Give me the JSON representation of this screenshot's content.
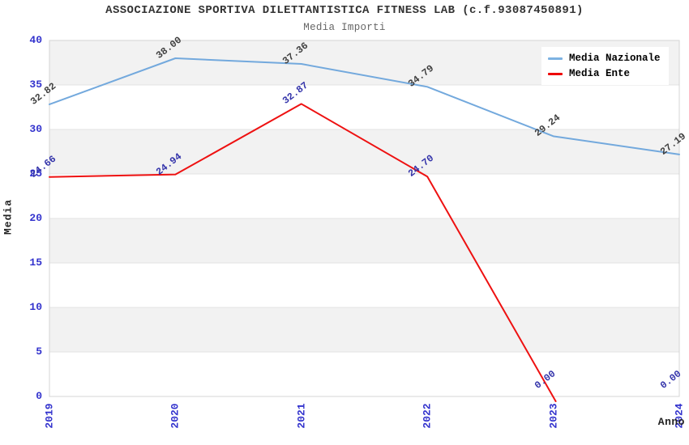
{
  "header": {
    "title": "ASSOCIAZIONE SPORTIVA DILETTANTISTICA FITNESS LAB (c.f.93087450891)",
    "subtitle": "Media Importi"
  },
  "legend": {
    "items": [
      {
        "label": "Media Nazionale",
        "color": "#7db2e2"
      },
      {
        "label": "Media Ente",
        "color": "#ee0000"
      }
    ]
  },
  "chart_data": {
    "type": "line",
    "title": "ASSOCIAZIONE SPORTIVA DILETTANTISTICA FITNESS LAB (c.f.93087450891)",
    "subtitle": "Media Importi",
    "xlabel": "Anno",
    "ylabel": "Media",
    "x": [
      2019,
      2020,
      2021,
      2022,
      2023,
      2024
    ],
    "series": [
      {
        "name": "Media Nazionale",
        "color": "#73a9dd",
        "label_color": "#3f3f3f",
        "values": [
          32.82,
          38.0,
          37.36,
          34.79,
          29.24,
          27.19
        ]
      },
      {
        "name": "Media Ente",
        "color": "#ee1111",
        "label_color": "#3333aa",
        "values": [
          24.66,
          24.94,
          32.87,
          24.7,
          0.0,
          0.0
        ]
      }
    ],
    "ylim": [
      0,
      40
    ],
    "ytick_step": 5,
    "yticks": [
      0,
      5,
      10,
      15,
      20,
      25,
      30,
      35,
      40
    ],
    "grid": true,
    "legend_position": "top-right",
    "band_colors": [
      "#f2f2f2",
      "#ffffff"
    ],
    "tick_label_color": "#3232cd"
  }
}
